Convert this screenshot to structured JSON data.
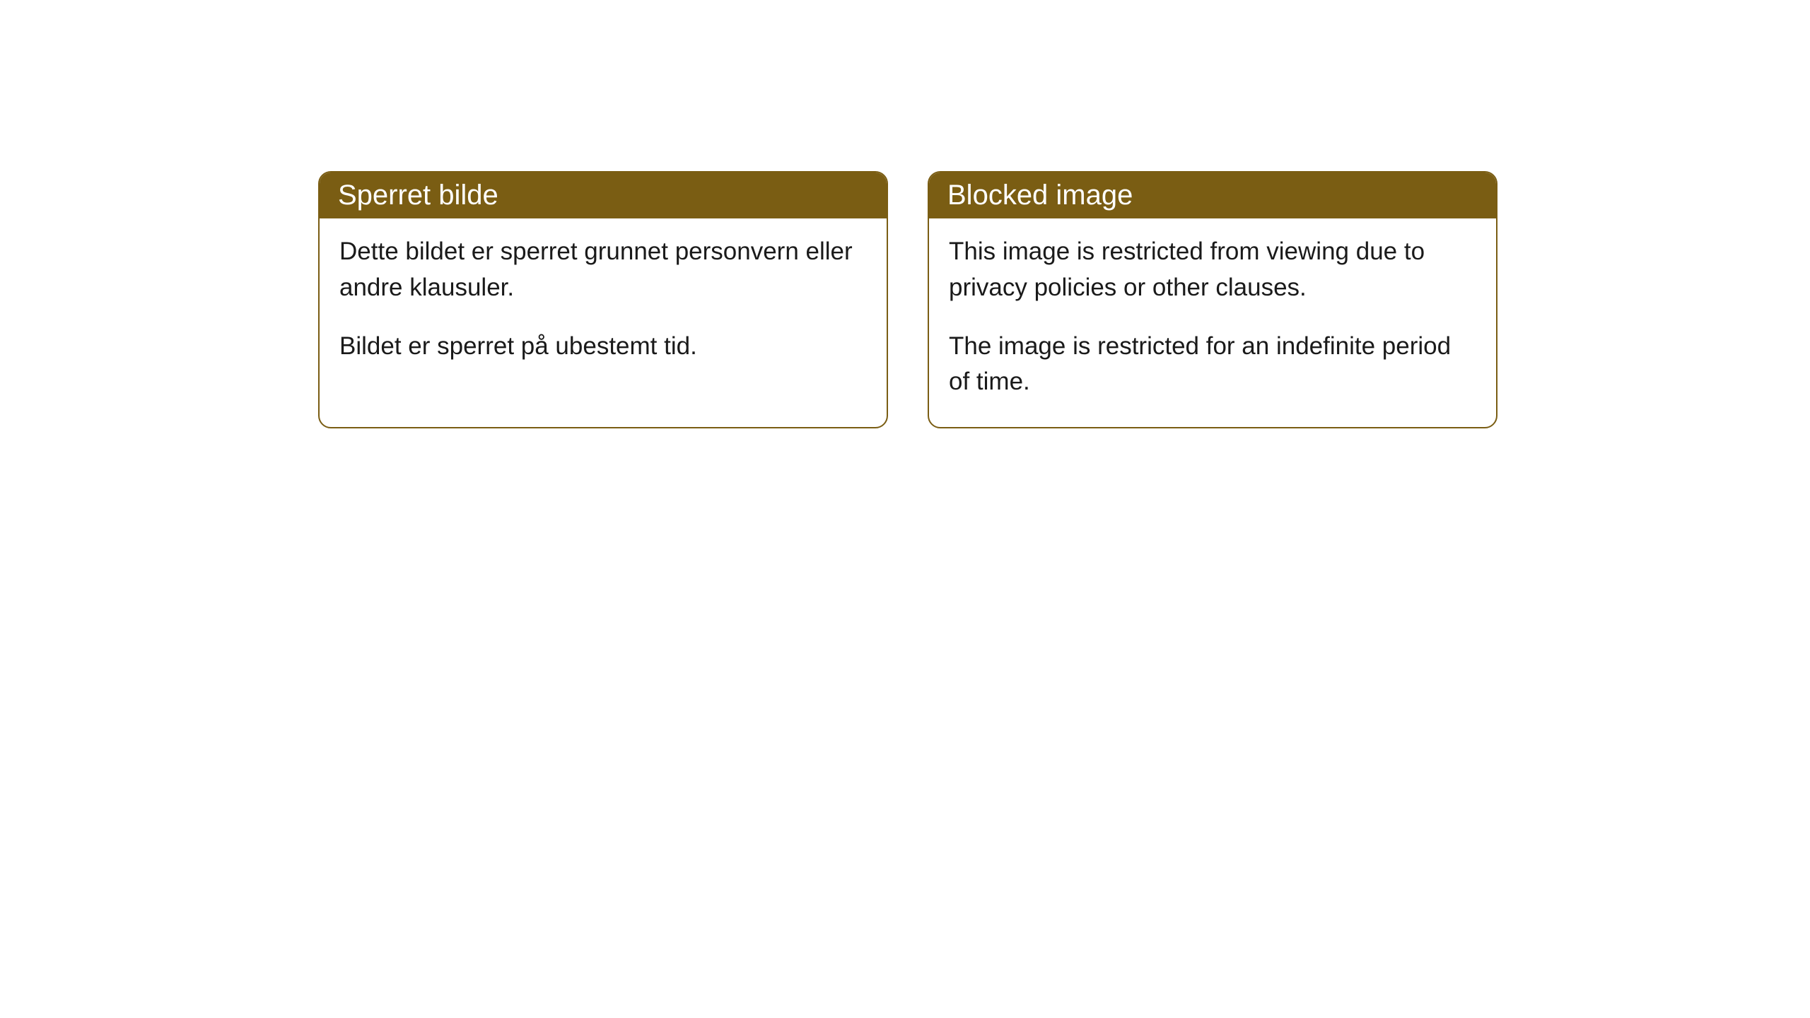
{
  "cards": [
    {
      "title": "Sperret bilde",
      "paragraph1": "Dette bildet er sperret grunnet personvern eller andre klausuler.",
      "paragraph2": "Bildet er sperret på ubestemt tid."
    },
    {
      "title": "Blocked image",
      "paragraph1": "This image is restricted from viewing due to privacy policies or other clauses.",
      "paragraph2": "The image is restricted for an indefinite period of time."
    }
  ],
  "style": {
    "header_background": "#7a5d13",
    "header_text_color": "#ffffff",
    "border_color": "#7a5d13",
    "body_text_color": "#1a1a1a",
    "page_background": "#ffffff",
    "border_radius": 18,
    "header_fontsize": 40,
    "body_fontsize": 35
  }
}
